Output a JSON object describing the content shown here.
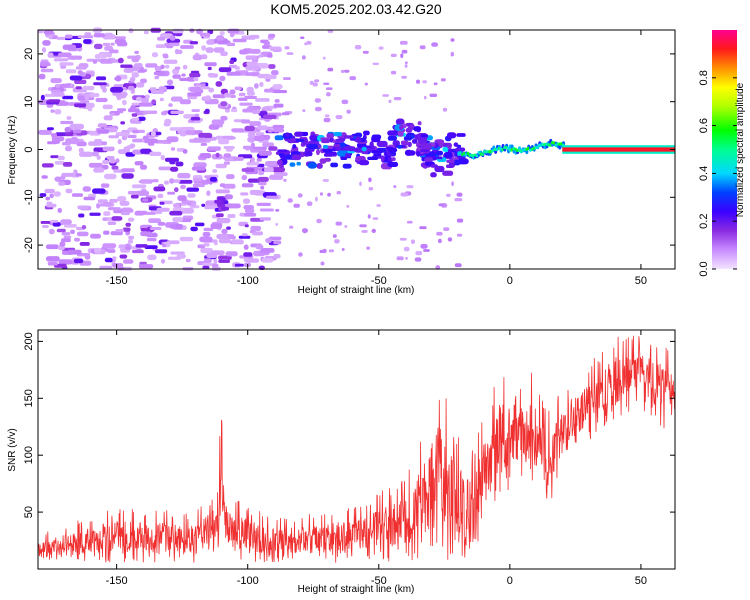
{
  "title": "KOM5.2025.202.03.42.G20",
  "chart_data": [
    {
      "type": "heatmap",
      "xlabel": "Height of straight line (km)",
      "ylabel": "Frequency (Hz)",
      "xlim": [
        -180,
        63
      ],
      "ylim": [
        -25,
        25
      ],
      "xticks": [
        -150,
        -100,
        -50,
        0,
        50
      ],
      "yticks": [
        -20,
        -10,
        0,
        10,
        20
      ],
      "colorbar": {
        "label": "Normalized spectral amplitude",
        "range": [
          0,
          1
        ],
        "ticks": [
          "0.0",
          "0.2",
          "0.4",
          "0.6",
          "0.8"
        ],
        "colormap": "rainbow: light violet → purple → blue → cyan → green → yellow → orange → red → magenta"
      },
      "features": [
        {
          "x_range": [
            -180,
            -90
          ],
          "freq_range": [
            -25,
            25
          ],
          "amplitude": 0.05,
          "description": "scattered low-amplitude noise speckles"
        },
        {
          "x_range": [
            -90,
            -20
          ],
          "freq_range": [
            -6,
            6
          ],
          "amplitude": 0.2,
          "description": "blue/purple blobs around 0 Hz"
        },
        {
          "x_range": [
            -113,
            -108
          ],
          "freq_range": [
            -14,
            -10
          ],
          "amplitude": 0.1,
          "description": "purple patch"
        },
        {
          "x_range": [
            -20,
            20
          ],
          "freq_range": [
            -2,
            1
          ],
          "amplitude": 0.45,
          "description": "cyan/green/yellow ridge near 0 Hz"
        },
        {
          "x_range": [
            20,
            63
          ],
          "freq_range": [
            -0.8,
            0.8
          ],
          "amplitude": 0.95,
          "description": "strong red/magenta line at 0 Hz"
        }
      ]
    },
    {
      "type": "line",
      "xlabel": "Height of straight line (km)",
      "ylabel": "SNR (v/v)",
      "xlim": [
        -180,
        63
      ],
      "ylim": [
        0,
        210
      ],
      "xticks": [
        -150,
        -100,
        -50,
        0,
        50
      ],
      "yticks": [
        50,
        100,
        150,
        200
      ],
      "color": "#f03030",
      "envelope": [
        {
          "x": -180,
          "low": 5,
          "high": 30
        },
        {
          "x": -150,
          "low": 5,
          "high": 55
        },
        {
          "x": -120,
          "low": 5,
          "high": 50
        },
        {
          "x": -112,
          "low": 10,
          "high": 70
        },
        {
          "x": -110,
          "low": 15,
          "high": 147
        },
        {
          "x": -108,
          "low": 8,
          "high": 65
        },
        {
          "x": -90,
          "low": 5,
          "high": 45
        },
        {
          "x": -60,
          "low": 5,
          "high": 55
        },
        {
          "x": -40,
          "low": 5,
          "high": 80
        },
        {
          "x": -35,
          "low": 8,
          "high": 110
        },
        {
          "x": -28,
          "low": 10,
          "high": 180
        },
        {
          "x": -20,
          "low": 5,
          "high": 120
        },
        {
          "x": -15,
          "low": 10,
          "high": 100
        },
        {
          "x": -5,
          "low": 60,
          "high": 170
        },
        {
          "x": 5,
          "low": 80,
          "high": 190
        },
        {
          "x": 15,
          "low": 50,
          "high": 140
        },
        {
          "x": 20,
          "low": 100,
          "high": 160
        },
        {
          "x": 30,
          "low": 110,
          "high": 180
        },
        {
          "x": 40,
          "low": 130,
          "high": 205
        },
        {
          "x": 50,
          "low": 140,
          "high": 205
        },
        {
          "x": 63,
          "low": 115,
          "high": 195
        }
      ]
    }
  ]
}
